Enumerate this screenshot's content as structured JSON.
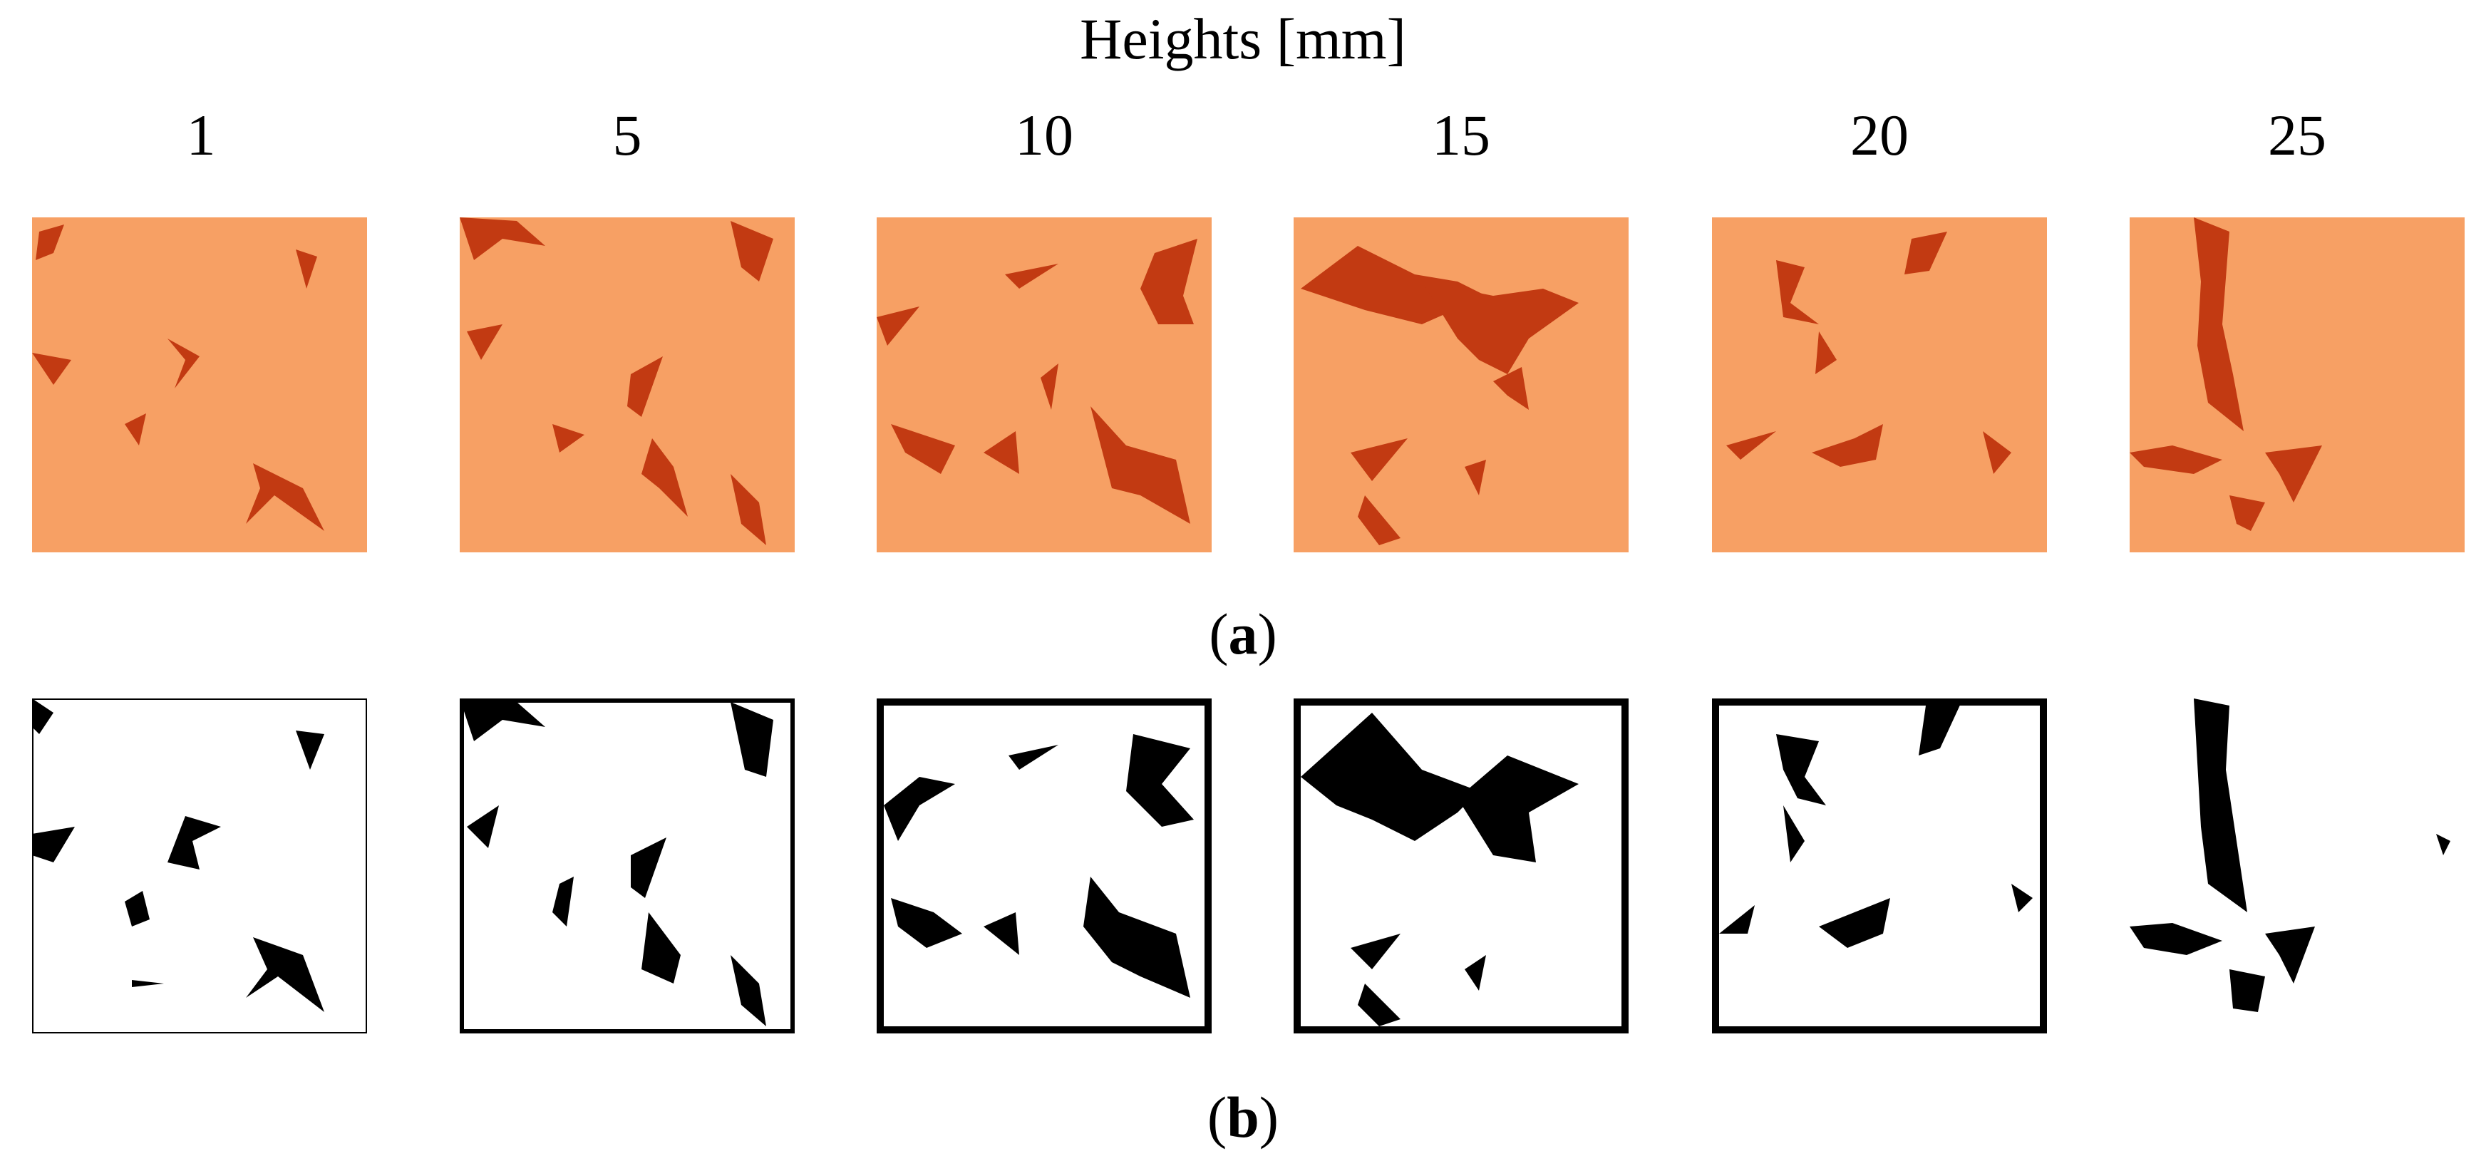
{
  "heading": "Heights [mm]",
  "heights": [
    "1",
    "5",
    "10",
    "15",
    "20",
    "25"
  ],
  "row_a": {
    "open": "(",
    "letter": "a",
    "close": ")"
  },
  "row_b": {
    "open": "(",
    "letter": "b",
    "close": ")"
  },
  "colors": {
    "photo_bg": "#f7a064",
    "photo_hole": "#c23a12",
    "mask_bg": "#ffffff",
    "mask_hole": "#000000"
  }
}
